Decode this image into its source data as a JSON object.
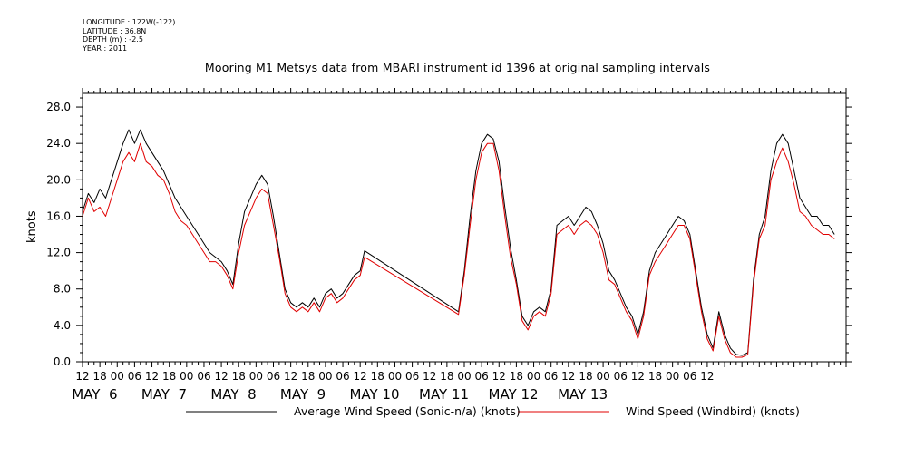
{
  "header": {
    "longitude": "LONGITUDE : 122W(-122)",
    "latitude": "LATITUDE : 36.8N",
    "depth": "DEPTH (m) : -2.5",
    "year": "YEAR : 2011"
  },
  "chart_data": {
    "type": "line",
    "title": "Mooring M1 Metsys data from MBARI instrument id 1396 at original sampling intervals",
    "ylabel": "knots",
    "xlabel": "",
    "ylim": [
      0,
      29.5
    ],
    "y_ticks": [
      "0.0",
      "4.0",
      "8.0",
      "12.0",
      "16.0",
      "20.0",
      "24.0",
      "28.0"
    ],
    "x_hour_ticks": [
      "12",
      "18",
      "00",
      "06",
      "12",
      "18",
      "00",
      "06",
      "12",
      "18",
      "00",
      "06",
      "12",
      "18",
      "00",
      "06",
      "12",
      "18",
      "00",
      "06",
      "12",
      "18",
      "00",
      "06",
      "12",
      "18",
      "00",
      "06",
      "12",
      "18",
      "00",
      "06",
      "12",
      "18",
      "00",
      "06",
      "12"
    ],
    "x_day_labels": [
      "MAY  6",
      "MAY  7",
      "MAY  8",
      "MAY  9",
      "MAY 10",
      "MAY 11",
      "MAY 12",
      "MAY 13"
    ],
    "x_unit": "hours since MAY 5 12:00",
    "grid": false,
    "legend_position": "bottom",
    "series": [
      {
        "name": "Average Wind Speed (Sonic-n/a) (knots)",
        "color": "#000000",
        "points": [
          [
            0,
            16.5
          ],
          [
            2,
            18.5
          ],
          [
            4,
            17.5
          ],
          [
            6,
            19
          ],
          [
            8,
            18
          ],
          [
            10,
            20
          ],
          [
            12,
            22
          ],
          [
            14,
            24
          ],
          [
            16,
            25.5
          ],
          [
            18,
            24
          ],
          [
            20,
            25.5
          ],
          [
            22,
            24
          ],
          [
            24,
            23
          ],
          [
            26,
            22
          ],
          [
            28,
            21
          ],
          [
            30,
            19.5
          ],
          [
            32,
            18
          ],
          [
            34,
            17
          ],
          [
            36,
            16
          ],
          [
            38,
            15
          ],
          [
            40,
            14
          ],
          [
            42,
            13
          ],
          [
            44,
            12
          ],
          [
            46,
            11.5
          ],
          [
            48,
            11
          ],
          [
            50,
            10
          ],
          [
            52,
            8.5
          ],
          [
            54,
            13
          ],
          [
            56,
            16.5
          ],
          [
            58,
            18
          ],
          [
            60,
            19.5
          ],
          [
            62,
            20.5
          ],
          [
            64,
            19.5
          ],
          [
            66,
            16
          ],
          [
            68,
            12
          ],
          [
            70,
            8
          ],
          [
            72,
            6.5
          ],
          [
            74,
            6
          ],
          [
            76,
            6.5
          ],
          [
            78,
            6
          ],
          [
            80,
            7
          ],
          [
            82,
            6
          ],
          [
            84,
            7.5
          ],
          [
            86,
            8
          ],
          [
            88,
            7
          ],
          [
            90,
            7.5
          ],
          [
            92,
            8.5
          ],
          [
            94,
            9.5
          ],
          [
            96,
            10
          ],
          [
            97.5,
            12.2
          ],
          [
            130,
            5.5
          ],
          [
            132,
            10
          ],
          [
            134,
            16
          ],
          [
            136,
            21
          ],
          [
            138,
            24
          ],
          [
            140,
            25
          ],
          [
            142,
            24.5
          ],
          [
            144,
            22
          ],
          [
            146,
            17
          ],
          [
            148,
            12.5
          ],
          [
            150,
            9
          ],
          [
            152,
            5
          ],
          [
            154,
            4
          ],
          [
            156,
            5.5
          ],
          [
            158,
            6
          ],
          [
            160,
            5.5
          ],
          [
            162,
            8
          ],
          [
            164,
            15
          ],
          [
            166,
            15.5
          ],
          [
            168,
            16
          ],
          [
            170,
            15
          ],
          [
            172,
            16
          ],
          [
            174,
            17
          ],
          [
            176,
            16.5
          ],
          [
            178,
            15
          ],
          [
            180,
            13
          ],
          [
            182,
            10
          ],
          [
            184,
            9
          ],
          [
            186,
            7.5
          ],
          [
            188,
            6
          ],
          [
            190,
            5
          ],
          [
            192,
            3
          ],
          [
            194,
            5.5
          ],
          [
            196,
            10
          ],
          [
            198,
            12
          ],
          [
            200,
            13
          ],
          [
            202,
            14
          ],
          [
            204,
            15
          ],
          [
            206,
            16
          ],
          [
            208,
            15.5
          ],
          [
            210,
            14
          ],
          [
            212,
            10
          ],
          [
            214,
            6
          ],
          [
            216,
            3
          ],
          [
            218,
            1.5
          ],
          [
            220,
            5.5
          ],
          [
            222,
            3
          ],
          [
            224,
            1.5
          ],
          [
            226,
            0.8
          ],
          [
            228,
            0.7
          ],
          [
            230,
            1
          ],
          [
            232,
            9
          ],
          [
            234,
            14
          ],
          [
            236,
            16
          ],
          [
            238,
            21
          ],
          [
            240,
            24
          ],
          [
            242,
            25
          ],
          [
            244,
            24
          ],
          [
            246,
            21
          ],
          [
            248,
            18
          ],
          [
            250,
            17
          ],
          [
            252,
            16
          ],
          [
            254,
            16
          ],
          [
            256,
            15
          ],
          [
            258,
            15
          ],
          [
            260,
            14
          ]
        ]
      },
      {
        "name": "Wind Speed (Windbird) (knots)",
        "color": "#e00000",
        "points": [
          [
            0,
            16
          ],
          [
            2,
            18
          ],
          [
            4,
            16.5
          ],
          [
            6,
            17
          ],
          [
            8,
            16
          ],
          [
            10,
            18
          ],
          [
            12,
            20
          ],
          [
            14,
            22
          ],
          [
            16,
            23
          ],
          [
            18,
            22
          ],
          [
            20,
            24
          ],
          [
            22,
            22
          ],
          [
            24,
            21.5
          ],
          [
            26,
            20.5
          ],
          [
            28,
            20
          ],
          [
            30,
            18.5
          ],
          [
            32,
            16.5
          ],
          [
            34,
            15.5
          ],
          [
            36,
            15
          ],
          [
            38,
            14
          ],
          [
            40,
            13
          ],
          [
            42,
            12
          ],
          [
            44,
            11
          ],
          [
            46,
            11
          ],
          [
            48,
            10.5
          ],
          [
            50,
            9.5
          ],
          [
            52,
            8
          ],
          [
            54,
            12
          ],
          [
            56,
            15
          ],
          [
            58,
            16.5
          ],
          [
            60,
            18
          ],
          [
            62,
            19
          ],
          [
            64,
            18.5
          ],
          [
            66,
            15
          ],
          [
            68,
            11.5
          ],
          [
            70,
            7.5
          ],
          [
            72,
            6
          ],
          [
            74,
            5.5
          ],
          [
            76,
            6
          ],
          [
            78,
            5.5
          ],
          [
            80,
            6.5
          ],
          [
            82,
            5.5
          ],
          [
            84,
            7
          ],
          [
            86,
            7.5
          ],
          [
            88,
            6.5
          ],
          [
            90,
            7
          ],
          [
            92,
            8
          ],
          [
            94,
            9
          ],
          [
            96,
            9.5
          ],
          [
            97.5,
            11.5
          ],
          [
            130,
            5.2
          ],
          [
            132,
            9.5
          ],
          [
            134,
            15
          ],
          [
            136,
            20
          ],
          [
            138,
            23
          ],
          [
            140,
            24
          ],
          [
            142,
            24
          ],
          [
            144,
            21
          ],
          [
            146,
            16
          ],
          [
            148,
            11.5
          ],
          [
            150,
            8.5
          ],
          [
            152,
            4.5
          ],
          [
            154,
            3.5
          ],
          [
            156,
            5
          ],
          [
            158,
            5.5
          ],
          [
            160,
            5
          ],
          [
            162,
            7.5
          ],
          [
            164,
            14
          ],
          [
            166,
            14.5
          ],
          [
            168,
            15
          ],
          [
            170,
            14
          ],
          [
            172,
            15
          ],
          [
            174,
            15.5
          ],
          [
            176,
            15
          ],
          [
            178,
            14
          ],
          [
            180,
            12
          ],
          [
            182,
            9
          ],
          [
            184,
            8.5
          ],
          [
            186,
            7
          ],
          [
            188,
            5.5
          ],
          [
            190,
            4.5
          ],
          [
            192,
            2.5
          ],
          [
            194,
            5
          ],
          [
            196,
            9.5
          ],
          [
            198,
            11
          ],
          [
            200,
            12
          ],
          [
            202,
            13
          ],
          [
            204,
            14
          ],
          [
            206,
            15
          ],
          [
            208,
            15
          ],
          [
            210,
            13.5
          ],
          [
            212,
            9.5
          ],
          [
            214,
            5.5
          ],
          [
            216,
            2.5
          ],
          [
            218,
            1.2
          ],
          [
            220,
            5
          ],
          [
            222,
            2.5
          ],
          [
            224,
            1
          ],
          [
            226,
            0.5
          ],
          [
            228,
            0.5
          ],
          [
            230,
            0.8
          ],
          [
            232,
            8.5
          ],
          [
            234,
            13.5
          ],
          [
            236,
            15
          ],
          [
            238,
            20
          ],
          [
            240,
            22
          ],
          [
            242,
            23.5
          ],
          [
            244,
            22
          ],
          [
            246,
            19.5
          ],
          [
            248,
            16.5
          ],
          [
            250,
            16
          ],
          [
            252,
            15
          ],
          [
            254,
            14.5
          ],
          [
            256,
            14
          ],
          [
            258,
            14
          ],
          [
            260,
            13.5
          ]
        ]
      }
    ]
  }
}
